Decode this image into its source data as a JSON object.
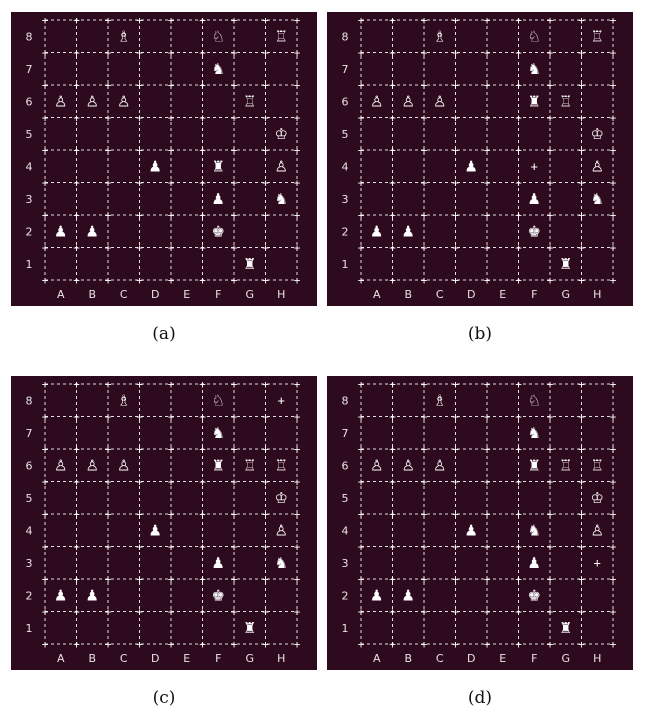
{
  "colors": {
    "board_background": "#2e0a1f",
    "grid": "#e6dce2",
    "text": "#ffffff"
  },
  "files": [
    "A",
    "B",
    "C",
    "D",
    "E",
    "F",
    "G",
    "H"
  ],
  "ranks": [
    "8",
    "7",
    "6",
    "5",
    "4",
    "3",
    "2",
    "1"
  ],
  "boards": [
    {
      "caption": "(a)",
      "pieces": [
        {
          "square": "C8",
          "glyph": "♗"
        },
        {
          "square": "F8",
          "glyph": "♘"
        },
        {
          "square": "H8",
          "glyph": "♖"
        },
        {
          "square": "F7",
          "glyph": "♞"
        },
        {
          "square": "A6",
          "glyph": "♙"
        },
        {
          "square": "B6",
          "glyph": "♙"
        },
        {
          "square": "C6",
          "glyph": "♙"
        },
        {
          "square": "G6",
          "glyph": "♖"
        },
        {
          "square": "H5",
          "glyph": "♔"
        },
        {
          "square": "D4",
          "glyph": "♟"
        },
        {
          "square": "F4",
          "glyph": "♜"
        },
        {
          "square": "H4",
          "glyph": "♙"
        },
        {
          "square": "F3",
          "glyph": "♟"
        },
        {
          "square": "H3",
          "glyph": "♞"
        },
        {
          "square": "A2",
          "glyph": "♟"
        },
        {
          "square": "B2",
          "glyph": "♟"
        },
        {
          "square": "F2",
          "glyph": "♚"
        },
        {
          "square": "G1",
          "glyph": "♜"
        }
      ],
      "markers": []
    },
    {
      "caption": "(b)",
      "pieces": [
        {
          "square": "C8",
          "glyph": "♗"
        },
        {
          "square": "F8",
          "glyph": "♘"
        },
        {
          "square": "H8",
          "glyph": "♖"
        },
        {
          "square": "F7",
          "glyph": "♞"
        },
        {
          "square": "A6",
          "glyph": "♙"
        },
        {
          "square": "B6",
          "glyph": "♙"
        },
        {
          "square": "C6",
          "glyph": "♙"
        },
        {
          "square": "F6",
          "glyph": "♜"
        },
        {
          "square": "G6",
          "glyph": "♖"
        },
        {
          "square": "H5",
          "glyph": "♔"
        },
        {
          "square": "D4",
          "glyph": "♟"
        },
        {
          "square": "H4",
          "glyph": "♙"
        },
        {
          "square": "F3",
          "glyph": "♟"
        },
        {
          "square": "H3",
          "glyph": "♞"
        },
        {
          "square": "A2",
          "glyph": "♟"
        },
        {
          "square": "B2",
          "glyph": "♟"
        },
        {
          "square": "F2",
          "glyph": "♚"
        },
        {
          "square": "G1",
          "glyph": "♜"
        }
      ],
      "markers": [
        {
          "square": "F4",
          "glyph": "+"
        }
      ]
    },
    {
      "caption": "(c)",
      "pieces": [
        {
          "square": "C8",
          "glyph": "♗"
        },
        {
          "square": "F8",
          "glyph": "♘"
        },
        {
          "square": "F7",
          "glyph": "♞"
        },
        {
          "square": "A6",
          "glyph": "♙"
        },
        {
          "square": "B6",
          "glyph": "♙"
        },
        {
          "square": "C6",
          "glyph": "♙"
        },
        {
          "square": "F6",
          "glyph": "♜"
        },
        {
          "square": "G6",
          "glyph": "♖"
        },
        {
          "square": "H6",
          "glyph": "♖"
        },
        {
          "square": "H5",
          "glyph": "♔"
        },
        {
          "square": "D4",
          "glyph": "♟"
        },
        {
          "square": "H4",
          "glyph": "♙"
        },
        {
          "square": "F3",
          "glyph": "♟"
        },
        {
          "square": "H3",
          "glyph": "♞"
        },
        {
          "square": "A2",
          "glyph": "♟"
        },
        {
          "square": "B2",
          "glyph": "♟"
        },
        {
          "square": "F2",
          "glyph": "♚"
        },
        {
          "square": "G1",
          "glyph": "♜"
        }
      ],
      "markers": [
        {
          "square": "H8",
          "glyph": "+"
        }
      ]
    },
    {
      "caption": "(d)",
      "pieces": [
        {
          "square": "C8",
          "glyph": "♗"
        },
        {
          "square": "F8",
          "glyph": "♘"
        },
        {
          "square": "F7",
          "glyph": "♞"
        },
        {
          "square": "A6",
          "glyph": "♙"
        },
        {
          "square": "B6",
          "glyph": "♙"
        },
        {
          "square": "C6",
          "glyph": "♙"
        },
        {
          "square": "F6",
          "glyph": "♜"
        },
        {
          "square": "G6",
          "glyph": "♖"
        },
        {
          "square": "H6",
          "glyph": "♖"
        },
        {
          "square": "H5",
          "glyph": "♔"
        },
        {
          "square": "D4",
          "glyph": "♟"
        },
        {
          "square": "F4",
          "glyph": "♞"
        },
        {
          "square": "H4",
          "glyph": "♙"
        },
        {
          "square": "F3",
          "glyph": "♟"
        },
        {
          "square": "A2",
          "glyph": "♟"
        },
        {
          "square": "B2",
          "glyph": "♟"
        },
        {
          "square": "F2",
          "glyph": "♚"
        },
        {
          "square": "G1",
          "glyph": "♜"
        }
      ],
      "markers": [
        {
          "square": "H3",
          "glyph": "+"
        }
      ]
    }
  ]
}
